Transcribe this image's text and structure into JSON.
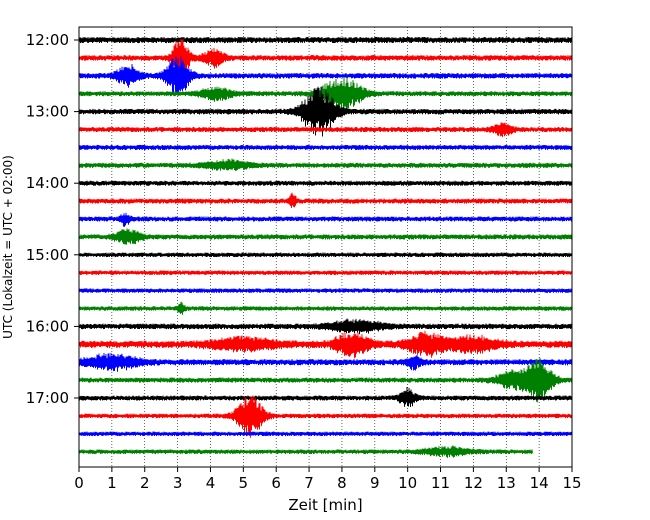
{
  "chart_data": {
    "type": "line",
    "title": "",
    "xlabel": "Zeit  [min]",
    "ylabel": "UTC (Lokalzeit = UTC + 02:00)",
    "xlim": [
      0,
      15
    ],
    "x_ticks": [
      "0",
      "1",
      "2",
      "3",
      "4",
      "5",
      "6",
      "7",
      "8",
      "9",
      "10",
      "11",
      "12",
      "13",
      "14",
      "15"
    ],
    "y_ticks": [
      {
        "label": "12:00",
        "row": 0
      },
      {
        "label": "13:00",
        "row": 4
      },
      {
        "label": "14:00",
        "row": 8
      },
      {
        "label": "15:00",
        "row": 12
      },
      {
        "label": "16:00",
        "row": 16
      },
      {
        "label": "17:00",
        "row": 20
      }
    ],
    "grid": "vertical dotted",
    "colors": [
      "#000000",
      "#ff0000",
      "#0000ff",
      "#008000"
    ],
    "row_minutes": 15,
    "start_time": "12:00",
    "traces": [
      {
        "start": "12:00",
        "color": "#000000",
        "noise": 2.2,
        "events": []
      },
      {
        "start": "12:15",
        "color": "#ff0000",
        "noise": 2.0,
        "events": [
          {
            "t": 3.1,
            "amp": 14,
            "width": 0.25
          },
          {
            "t": 4.1,
            "amp": 6,
            "width": 0.3
          }
        ]
      },
      {
        "start": "12:30",
        "color": "#0000ff",
        "noise": 2.0,
        "events": [
          {
            "t": 3.0,
            "amp": 14,
            "width": 0.35
          },
          {
            "t": 1.5,
            "amp": 7,
            "width": 0.35
          }
        ]
      },
      {
        "start": "12:45",
        "color": "#008000",
        "noise": 1.8,
        "events": [
          {
            "t": 8.0,
            "amp": 11,
            "width": 0.6
          },
          {
            "t": 4.2,
            "amp": 4,
            "width": 0.5
          }
        ]
      },
      {
        "start": "13:00",
        "color": "#000000",
        "noise": 2.0,
        "events": [
          {
            "t": 7.3,
            "amp": 16,
            "width": 0.5
          }
        ]
      },
      {
        "start": "13:15",
        "color": "#ff0000",
        "noise": 1.8,
        "events": [
          {
            "t": 12.9,
            "amp": 4,
            "width": 0.3
          }
        ]
      },
      {
        "start": "13:30",
        "color": "#0000ff",
        "noise": 1.8,
        "events": []
      },
      {
        "start": "13:45",
        "color": "#008000",
        "noise": 1.8,
        "events": [
          {
            "t": 4.5,
            "amp": 3,
            "width": 0.7
          }
        ]
      },
      {
        "start": "14:00",
        "color": "#000000",
        "noise": 1.8,
        "events": []
      },
      {
        "start": "14:15",
        "color": "#ff0000",
        "noise": 1.8,
        "events": [
          {
            "t": 6.5,
            "amp": 5,
            "width": 0.1
          }
        ]
      },
      {
        "start": "14:30",
        "color": "#0000ff",
        "noise": 1.8,
        "events": [
          {
            "t": 1.4,
            "amp": 4,
            "width": 0.15
          }
        ]
      },
      {
        "start": "14:45",
        "color": "#008000",
        "noise": 1.8,
        "events": [
          {
            "t": 1.5,
            "amp": 5,
            "width": 0.4
          }
        ]
      },
      {
        "start": "15:00",
        "color": "#000000",
        "noise": 1.6,
        "events": []
      },
      {
        "start": "15:15",
        "color": "#ff0000",
        "noise": 1.6,
        "events": []
      },
      {
        "start": "15:30",
        "color": "#0000ff",
        "noise": 1.6,
        "events": []
      },
      {
        "start": "15:45",
        "color": "#008000",
        "noise": 1.6,
        "events": [
          {
            "t": 3.1,
            "amp": 4,
            "width": 0.1
          }
        ]
      },
      {
        "start": "16:00",
        "color": "#000000",
        "noise": 2.0,
        "events": [
          {
            "t": 8.4,
            "amp": 4,
            "width": 0.8
          }
        ]
      },
      {
        "start": "16:15",
        "color": "#ff0000",
        "noise": 2.6,
        "events": [
          {
            "t": 8.3,
            "amp": 8,
            "width": 0.5
          },
          {
            "t": 10.6,
            "amp": 7,
            "width": 0.6
          },
          {
            "t": 12.0,
            "amp": 5,
            "width": 0.7
          },
          {
            "t": 5.0,
            "amp": 4,
            "width": 1.0
          }
        ]
      },
      {
        "start": "16:30",
        "color": "#0000ff",
        "noise": 2.2,
        "events": [
          {
            "t": 1.0,
            "amp": 5,
            "width": 0.8
          },
          {
            "t": 10.2,
            "amp": 4,
            "width": 0.2
          }
        ]
      },
      {
        "start": "16:45",
        "color": "#008000",
        "noise": 1.8,
        "events": [
          {
            "t": 14.0,
            "amp": 14,
            "width": 0.4
          },
          {
            "t": 13.2,
            "amp": 6,
            "width": 0.5
          }
        ]
      },
      {
        "start": "17:00",
        "color": "#000000",
        "noise": 1.8,
        "events": [
          {
            "t": 10.0,
            "amp": 6,
            "width": 0.25
          }
        ]
      },
      {
        "start": "17:15",
        "color": "#ff0000",
        "noise": 1.6,
        "events": [
          {
            "t": 5.2,
            "amp": 14,
            "width": 0.4
          }
        ]
      },
      {
        "start": "17:30",
        "color": "#0000ff",
        "noise": 1.6,
        "events": []
      },
      {
        "start": "17:45",
        "color": "#008000",
        "noise": 1.6,
        "end_minute": 13.8,
        "events": [
          {
            "t": 11.2,
            "amp": 3,
            "width": 0.7
          }
        ]
      }
    ]
  }
}
